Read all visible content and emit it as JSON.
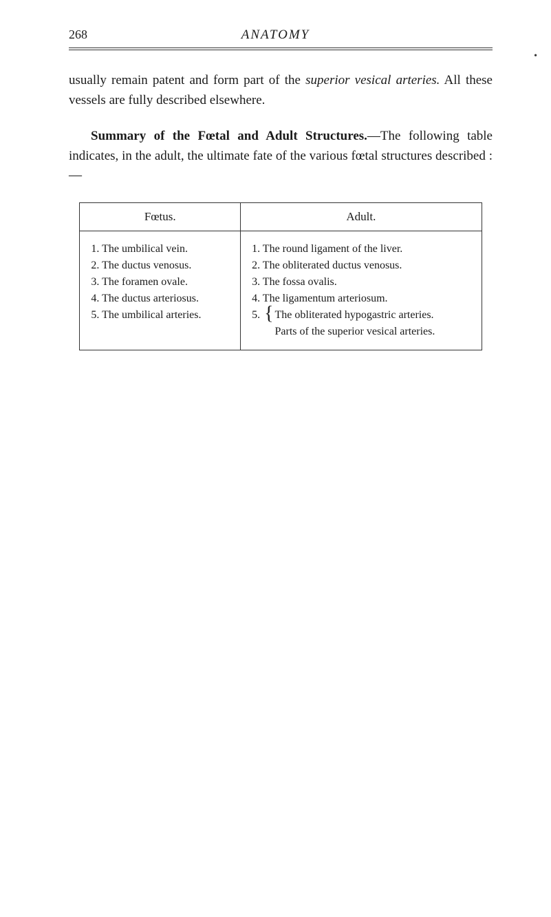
{
  "page_number": "268",
  "header_title": "ANATOMY",
  "side_mark": "•",
  "paragraph1_pre": "usually remain patent and form part of the ",
  "paragraph1_italic": "superior vesical arteries.",
  "paragraph1_post": " All these vessels are fully described elsewhere.",
  "paragraph2_bold": "Summary of the Fœtal and Adult Structures.",
  "paragraph2_post": "—The following table indicates, in the adult, the ultimate fate of the various fœtal structures described :—",
  "table": {
    "headers": [
      "Fœtus.",
      "Adult."
    ],
    "foetus_items": [
      "1. The umbilical vein.",
      "2. The ductus venosus.",
      "3. The foramen ovale.",
      "4. The ductus arteriosus.",
      "5. The umbilical arteries."
    ],
    "adult_items": [
      "1. The round ligament of the liver.",
      "2. The obliterated ductus venosus.",
      "3. The fossa ovalis.",
      "4. The ligamentum arteriosum."
    ],
    "adult_item5_num": "5.",
    "adult_item5_line1": "The obliterated hypogastric arteries.",
    "adult_item5_line2": "Parts of the superior vesical arteries."
  }
}
